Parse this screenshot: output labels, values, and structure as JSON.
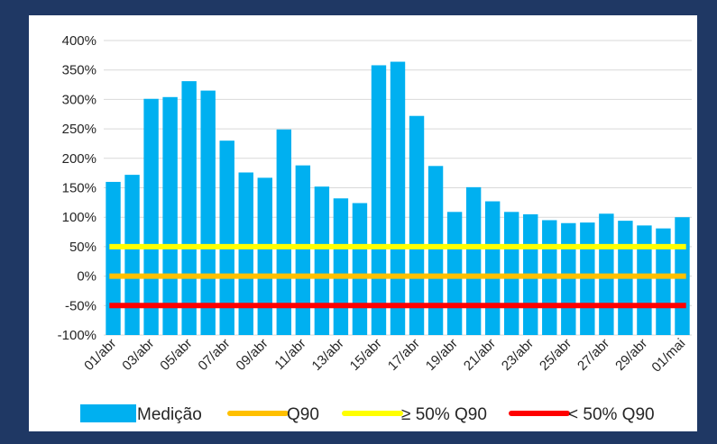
{
  "chart_data": {
    "type": "bar",
    "title": "",
    "xlabel": "",
    "ylabel": "",
    "ylim": [
      -100,
      400
    ],
    "yticks": [
      "400%",
      "350%",
      "300%",
      "250%",
      "200%",
      "150%",
      "100%",
      "50%",
      "0%",
      "-50%",
      "-100%"
    ],
    "grid": true,
    "legend_position": "bottom",
    "categories": [
      "01/abr",
      "02/abr",
      "03/abr",
      "04/abr",
      "05/abr",
      "06/abr",
      "07/abr",
      "08/abr",
      "09/abr",
      "10/abr",
      "11/abr",
      "12/abr",
      "13/abr",
      "14/abr",
      "15/abr",
      "16/abr",
      "17/abr",
      "18/abr",
      "19/abr",
      "20/abr",
      "21/abr",
      "22/abr",
      "23/abr",
      "24/abr",
      "25/abr",
      "26/abr",
      "27/abr",
      "28/abr",
      "29/abr",
      "30/abr",
      "01/mai"
    ],
    "xtick_labels": [
      "01/abr",
      "03/abr",
      "05/abr",
      "07/abr",
      "09/abr",
      "11/abr",
      "13/abr",
      "15/abr",
      "17/abr",
      "19/abr",
      "21/abr",
      "23/abr",
      "25/abr",
      "27/abr",
      "29/abr",
      "01/mai"
    ],
    "series": [
      {
        "name": "Medição",
        "kind": "bar",
        "color": "#00b0f0",
        "values": [
          160,
          172,
          301,
          304,
          331,
          315,
          230,
          176,
          167,
          249,
          188,
          152,
          132,
          124,
          358,
          364,
          272,
          187,
          109,
          151,
          127,
          109,
          105,
          95,
          90,
          91,
          106,
          94,
          86,
          81,
          100
        ]
      },
      {
        "name": "Q90",
        "kind": "line",
        "color": "#ffc000",
        "value": 0
      },
      {
        "name": "≥ 50% Q90",
        "kind": "line",
        "color": "#ffff00",
        "value": 50
      },
      {
        "name": "< 50% Q90",
        "kind": "line",
        "color": "#ff0000",
        "value": -50
      }
    ]
  }
}
